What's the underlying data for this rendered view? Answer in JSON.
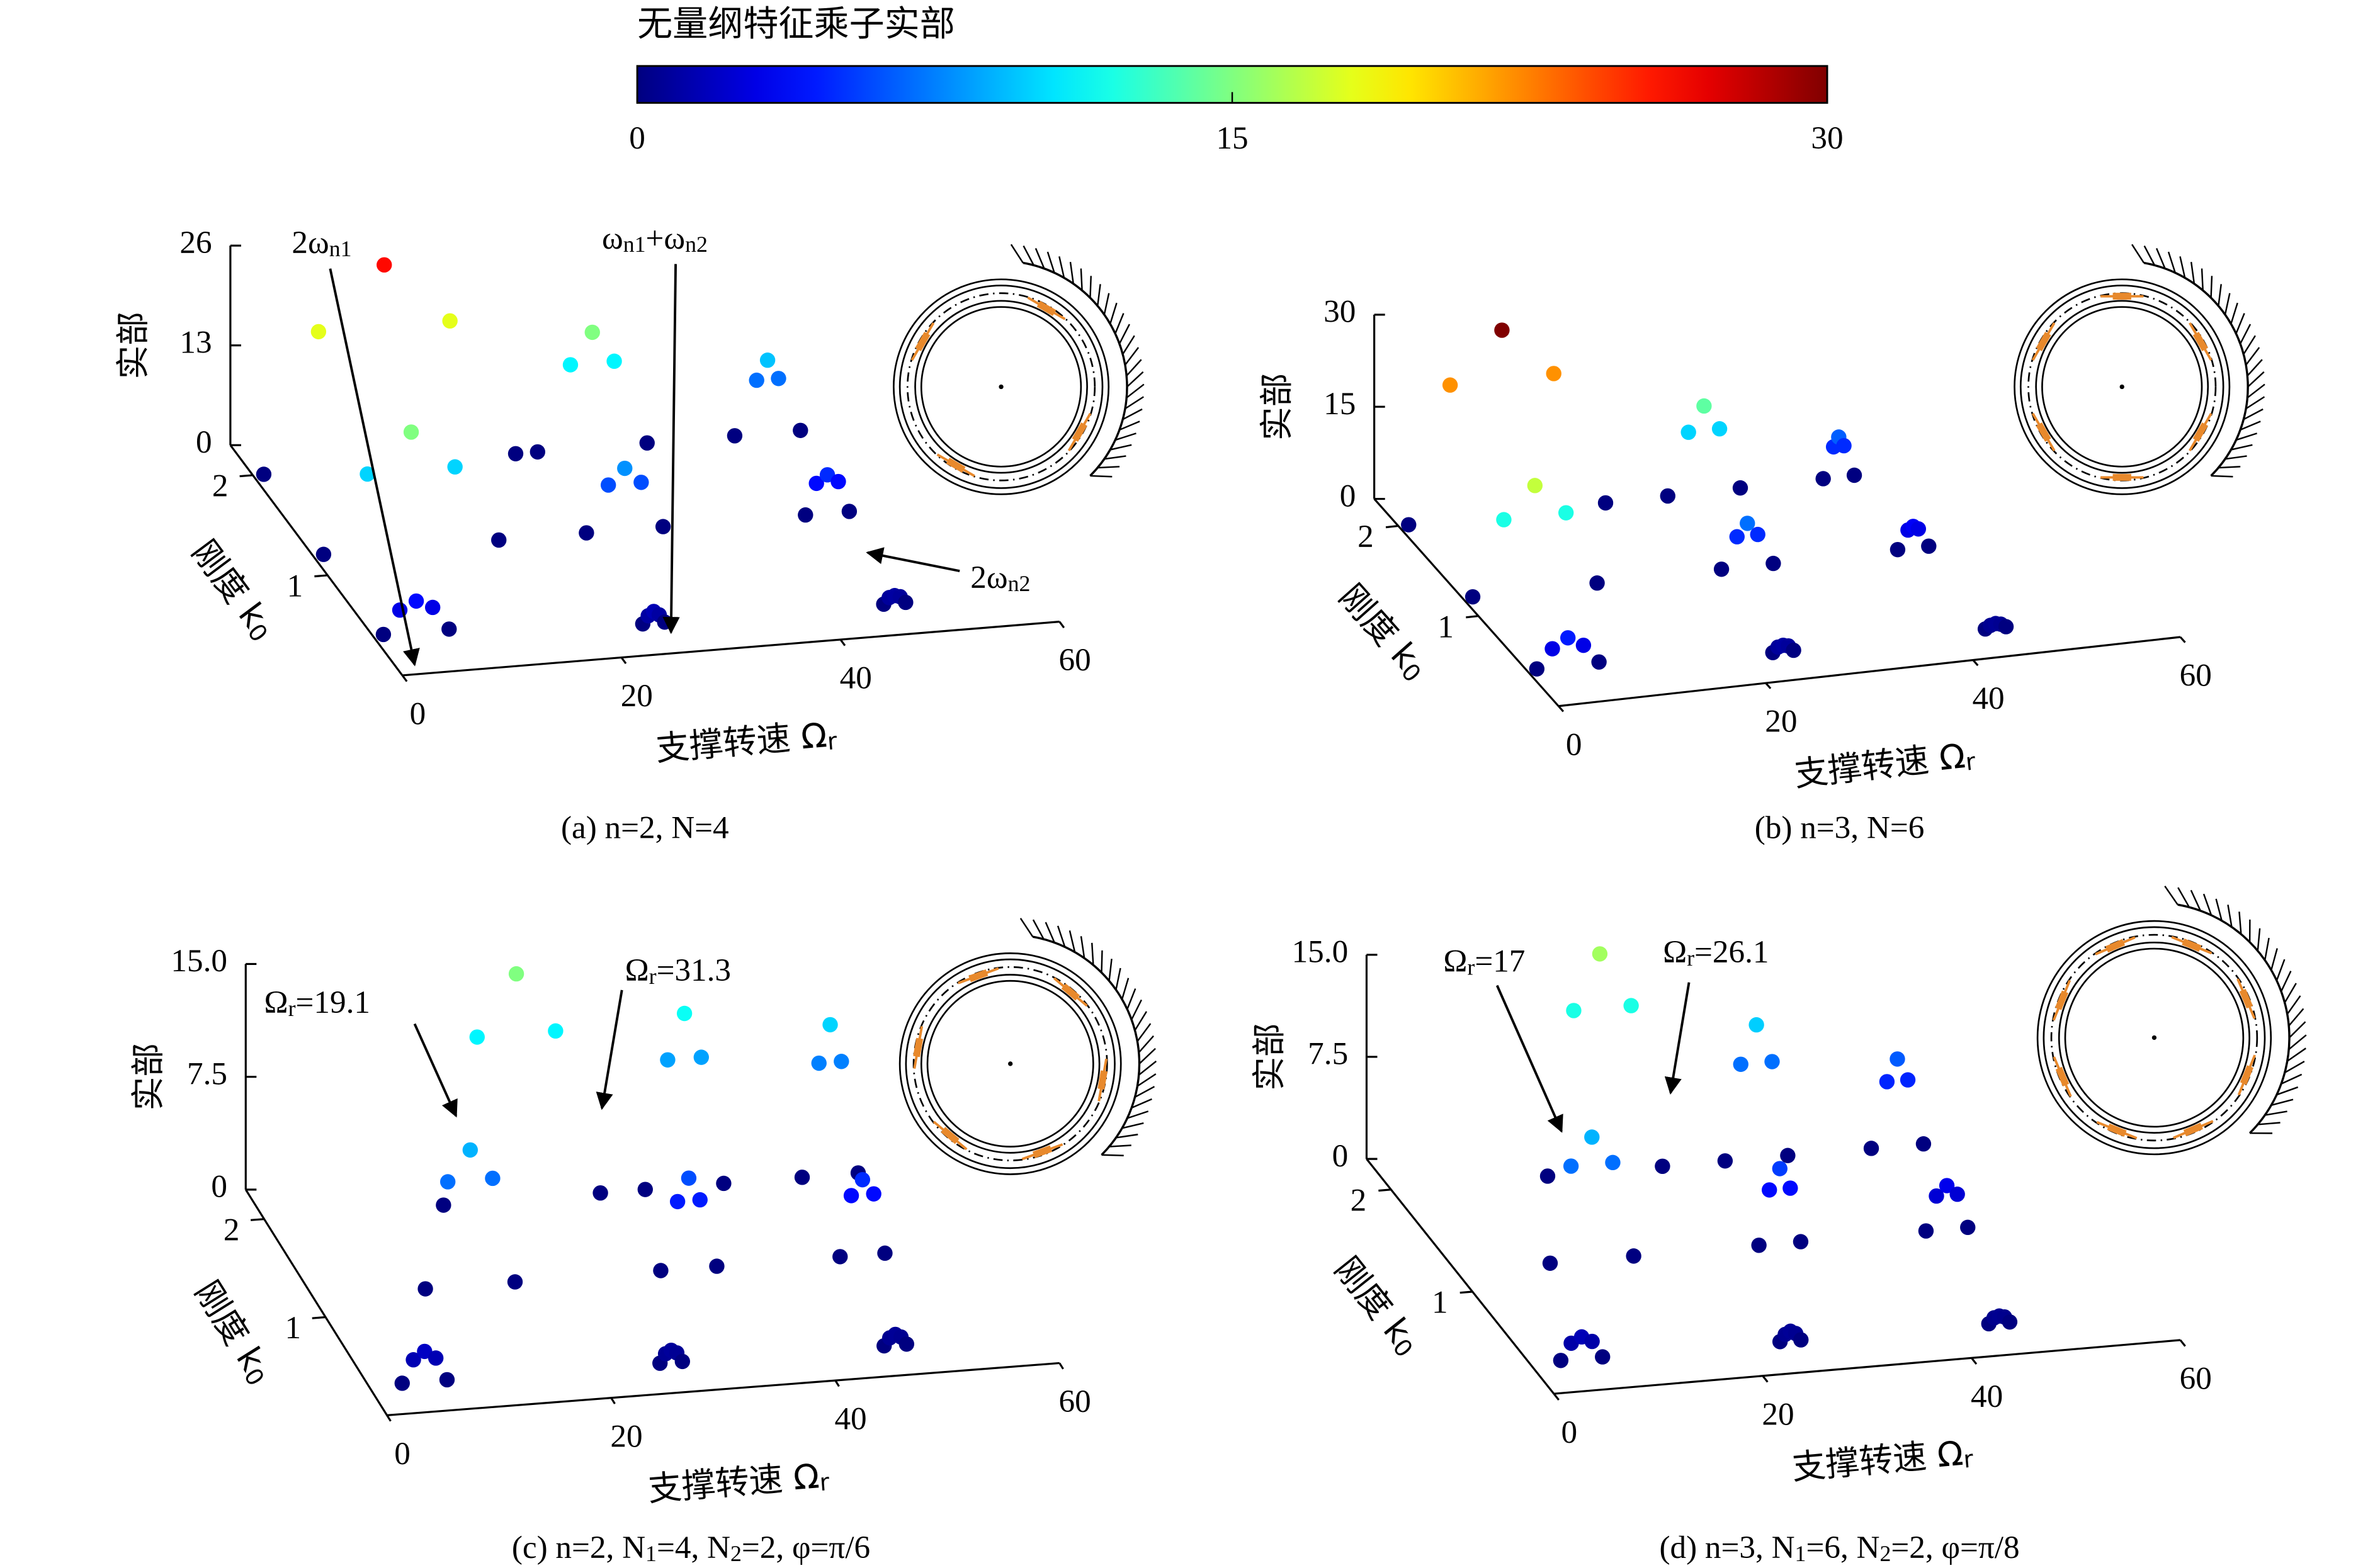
{
  "colorbar": {
    "title": "无量纲特征乘子实部",
    "colormap": "jet",
    "lim": [
      0,
      30
    ],
    "ticks": [
      0,
      15,
      30
    ]
  },
  "chart_data": [
    {
      "type": "scatter3d",
      "caption": [
        "(a) n=2, N=4"
      ],
      "xlabel": [
        "支撑转速 Ω",
        "r"
      ],
      "ylabel": [
        "刚度 k",
        "0"
      ],
      "zlabel": "实部",
      "xlim": [
        0,
        60
      ],
      "xticks": [
        0,
        20,
        40,
        60
      ],
      "ylim": [
        0,
        2.3
      ],
      "yticks": [
        1,
        2
      ],
      "zlim": [
        0,
        26
      ],
      "zticks": [
        0,
        13,
        26
      ],
      "annotations": [
        {
          "text": [
            "2ω",
            "n1"
          ]
        },
        {
          "text": [
            "ω",
            "n1",
            "+ω",
            "n2"
          ]
        },
        {
          "text": [
            "2ω",
            "n2"
          ]
        }
      ],
      "series": [
        {
          "x": [
            1,
            6,
            12,
            18,
            24,
            1,
            5,
            9,
            13,
            17,
            1,
            2.5,
            4,
            5.5,
            7
          ],
          "y": [
            2,
            2,
            2,
            2,
            2,
            1.2,
            1.2,
            1.2,
            1.2,
            1.2,
            0.4,
            0.4,
            0.4,
            0.4,
            0.4
          ],
          "values": [
            0,
            18,
            26,
            18,
            0,
            0,
            10,
            15,
            10,
            0,
            0,
            3,
            4,
            3,
            0
          ]
        },
        {
          "x": [
            26,
            29,
            31,
            33,
            36,
            25,
            27,
            28.5,
            30,
            32,
            24,
            24.5,
            25,
            25.5,
            26
          ],
          "y": [
            2,
            2,
            2,
            2,
            2,
            1.2,
            1.2,
            1.2,
            1.2,
            1.2,
            0.3,
            0.3,
            0.3,
            0.3,
            0.3
          ],
          "values": [
            0,
            11,
            15,
            11,
            0,
            0,
            6,
            8,
            6,
            0,
            0,
            1,
            1.5,
            1,
            0
          ]
        },
        {
          "x": [
            44,
            46,
            47,
            48,
            50,
            45,
            46,
            47,
            48,
            49,
            46,
            46.5,
            47,
            47.5,
            48
          ],
          "y": [
            2,
            2,
            2,
            2,
            2,
            1.2,
            1.2,
            1.2,
            1.2,
            1.2,
            0.3,
            0.3,
            0.3,
            0.3,
            0.3
          ],
          "values": [
            0,
            7,
            9.5,
            7,
            0,
            0,
            4,
            5,
            4,
            0,
            0,
            0.8,
            1,
            0.8,
            0
          ]
        }
      ]
    },
    {
      "type": "scatter3d",
      "caption": [
        "(b) n=3, N=6"
      ],
      "xlabel": [
        "支撑转速 Ω",
        "r"
      ],
      "ylabel": [
        "刚度 k",
        "0"
      ],
      "zlabel": "实部",
      "xlim": [
        0,
        60
      ],
      "xticks": [
        0,
        20,
        40,
        60
      ],
      "ylim": [
        0,
        2.3
      ],
      "yticks": [
        1,
        2
      ],
      "zlim": [
        0,
        30
      ],
      "zticks": [
        0,
        15,
        30
      ],
      "annotations": [],
      "series": [
        {
          "x": [
            1,
            5,
            10,
            15,
            20,
            1,
            4,
            7,
            10,
            13,
            1,
            2.5,
            4,
            5.5,
            7
          ],
          "y": [
            2,
            2,
            2,
            2,
            2,
            1.2,
            1.2,
            1.2,
            1.2,
            1.2,
            0.4,
            0.4,
            0.4,
            0.4,
            0.4
          ],
          "values": [
            0,
            22,
            30,
            22,
            0,
            0,
            12,
            17,
            12,
            0,
            0,
            3,
            4.5,
            3,
            0
          ]
        },
        {
          "x": [
            26,
            28,
            29.5,
            31,
            33,
            25,
            26.5,
            27.5,
            28.5,
            30,
            23,
            23.5,
            24,
            24.5,
            25
          ],
          "y": [
            2,
            2,
            2,
            2,
            2,
            1.2,
            1.2,
            1.2,
            1.2,
            1.2,
            0.3,
            0.3,
            0.3,
            0.3,
            0.3
          ],
          "values": [
            0,
            10,
            14,
            10,
            0,
            0,
            5,
            7,
            5,
            0,
            0,
            0.8,
            1,
            0.8,
            0
          ]
        },
        {
          "x": [
            41,
            42,
            42.5,
            43,
            44,
            42,
            43,
            43.5,
            44,
            45,
            43.5,
            44,
            44.5,
            45,
            45.5
          ],
          "y": [
            2,
            2,
            2,
            2,
            2,
            1.2,
            1.2,
            1.2,
            1.2,
            1.2,
            0.3,
            0.3,
            0.3,
            0.3,
            0.3
          ],
          "values": [
            0,
            5,
            6.5,
            5,
            0,
            0,
            3,
            3.5,
            3,
            0,
            0,
            0.5,
            0.7,
            0.5,
            0
          ]
        }
      ]
    },
    {
      "type": "scatter3d",
      "caption": [
        "(c) n=2, N",
        "1",
        "=4, N",
        "2",
        "=2, φ=π/6"
      ],
      "xlabel": [
        "支撑转速 Ω",
        "r"
      ],
      "ylabel": [
        "刚度 k",
        "0"
      ],
      "zlabel": "实部",
      "xlim": [
        0,
        60
      ],
      "xticks": [
        0,
        20,
        40,
        60
      ],
      "ylim": [
        0,
        2.3
      ],
      "yticks": [
        1,
        2
      ],
      "zlim": [
        0,
        15
      ],
      "zticks": [
        0,
        7.5,
        {
          "value": 15,
          "label": "15.0"
        }
      ],
      "annotations": [
        {
          "text": [
            "Ω",
            "r",
            "=19.1"
          ]
        },
        {
          "text": [
            "Ω",
            "r",
            "=31.3"
          ]
        }
      ],
      "series": [
        {
          "x": [
            16,
            19,
            22.5,
            26,
            30,
            10,
            12,
            14,
            16,
            18,
            3,
            4,
            5,
            6,
            7
          ],
          "y": [
            2,
            2,
            2,
            2,
            2,
            1.2,
            1.2,
            1.2,
            1.2,
            1.2,
            0.3,
            0.3,
            0.3,
            0.3,
            0.3
          ],
          "values": [
            0,
            11,
            15,
            11,
            0,
            0,
            7,
            9,
            7,
            0,
            0,
            1.5,
            2,
            1.5,
            0
          ]
        },
        {
          "x": [
            34,
            36,
            37.5,
            39,
            41,
            31,
            32.5,
            33.5,
            34.5,
            36,
            26,
            26.5,
            27,
            27.5,
            28
          ],
          "y": [
            2,
            2,
            2,
            2,
            2,
            1.2,
            1.2,
            1.2,
            1.2,
            1.2,
            0.3,
            0.3,
            0.3,
            0.3,
            0.3
          ],
          "values": [
            0,
            8.5,
            11.5,
            8.5,
            0,
            0,
            4.5,
            6,
            4.5,
            0,
            0,
            0.6,
            0.8,
            0.6,
            0
          ]
        },
        {
          "x": [
            48,
            49.5,
            50.5,
            51.5,
            53,
            47,
            48,
            49,
            50,
            51,
            46,
            46.5,
            47,
            47.5,
            48
          ],
          "y": [
            2,
            2,
            2,
            2,
            2,
            1.2,
            1.2,
            1.2,
            1.2,
            1.2,
            0.3,
            0.3,
            0.3,
            0.3,
            0.3
          ],
          "values": [
            0,
            7.5,
            10,
            7.5,
            0,
            0,
            4,
            5,
            4,
            0,
            0,
            0.5,
            0.7,
            0.5,
            0
          ]
        }
      ]
    },
    {
      "type": "scatter3d",
      "caption": [
        "(d) n=3, N",
        "1",
        "=6, N",
        "2",
        "=2, φ=π/8"
      ],
      "xlabel": [
        "支撑转速 Ω",
        "r"
      ],
      "ylabel": [
        "刚度 k",
        "0"
      ],
      "zlabel": "实部",
      "xlim": [
        0,
        60
      ],
      "xticks": [
        0,
        20,
        40,
        60
      ],
      "ylim": [
        0,
        2.3
      ],
      "yticks": [
        1,
        2
      ],
      "zlim": [
        0,
        15
      ],
      "zticks": [
        0,
        7.5,
        {
          "value": 15,
          "label": "15.0"
        }
      ],
      "annotations": [
        {
          "text": [
            "Ω",
            "r",
            "=17"
          ]
        },
        {
          "text": [
            "Ω",
            "r",
            "=26.1"
          ]
        }
      ],
      "series": [
        {
          "x": [
            15,
            17.5,
            20,
            23,
            26,
            9,
            11,
            13,
            15,
            17,
            3,
            4,
            5,
            6,
            7
          ],
          "y": [
            2,
            2,
            2,
            2,
            2,
            1.2,
            1.2,
            1.2,
            1.2,
            1.2,
            0.3,
            0.3,
            0.3,
            0.3,
            0.3
          ],
          "values": [
            0,
            12,
            16,
            12,
            0,
            0,
            7,
            9,
            7,
            0,
            0,
            1.2,
            1.6,
            1.2,
            0
          ]
        },
        {
          "x": [
            32,
            33.5,
            35,
            36.5,
            38,
            29,
            30,
            31,
            32,
            33,
            24,
            24.5,
            25,
            25.5,
            26
          ],
          "y": [
            2,
            2,
            2,
            2,
            2,
            1.2,
            1.2,
            1.2,
            1.2,
            1.2,
            0.3,
            0.3,
            0.3,
            0.3,
            0.3
          ],
          "values": [
            0,
            7,
            9.8,
            7,
            0,
            0,
            4,
            5.5,
            4,
            0,
            0,
            0.5,
            0.7,
            0.5,
            0
          ]
        },
        {
          "x": [
            46,
            47.5,
            48.5,
            49.5,
            51,
            45,
            46,
            47,
            48,
            49,
            44,
            44.5,
            45,
            45.5,
            46
          ],
          "y": [
            2,
            2,
            2,
            2,
            2,
            1.2,
            1.2,
            1.2,
            1.2,
            1.2,
            0.3,
            0.3,
            0.3,
            0.3,
            0.3
          ],
          "values": [
            0,
            4.8,
            6.4,
            4.8,
            0,
            0,
            2.5,
            3.2,
            2.5,
            0,
            0,
            0.4,
            0.5,
            0.4,
            0
          ]
        }
      ]
    }
  ]
}
